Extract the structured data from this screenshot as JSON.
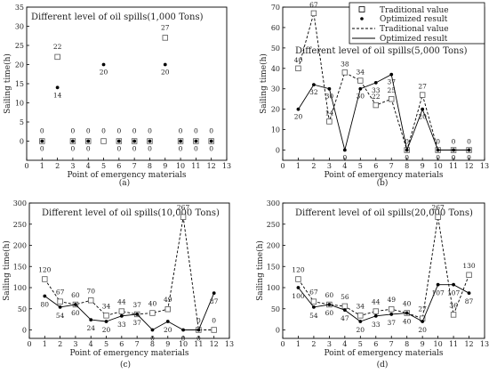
{
  "legend": {
    "traditional_points": "Traditional value",
    "optimized_points": "Optimized result",
    "traditional_line": "Traditional value",
    "optimized_line": "Optimized result"
  },
  "chart_data": [
    {
      "type": "scatter",
      "panel": "(a)",
      "title": "Different level of oil spills(1,000 Tons)",
      "xlabel": "Point of emergency materials",
      "ylabel": "Sailing time(h)",
      "xlim": [
        0,
        13
      ],
      "ylim": [
        -5,
        35
      ],
      "xticks": [
        0,
        1,
        2,
        3,
        4,
        5,
        6,
        7,
        8,
        9,
        10,
        11,
        12,
        13
      ],
      "yticks": [
        0,
        5,
        10,
        15,
        20,
        25,
        30,
        35
      ],
      "x": [
        1,
        2,
        3,
        4,
        5,
        6,
        7,
        8,
        9,
        10,
        11,
        12
      ],
      "series": [
        {
          "name": "Traditional value",
          "marker": "open-square",
          "line": false,
          "values": [
            0,
            22,
            0,
            0,
            0,
            0,
            0,
            0,
            27,
            0,
            0,
            0
          ],
          "labels": [
            "0",
            "22",
            "0",
            "0",
            "0",
            "0",
            "0",
            "0",
            "27",
            "0",
            "0",
            "0"
          ]
        },
        {
          "name": "Optimized result",
          "marker": "filled-circle",
          "line": false,
          "values": [
            0,
            14,
            0,
            0,
            20,
            0,
            0,
            0,
            20,
            0,
            0,
            0
          ],
          "labels": [
            "0",
            "14",
            "0",
            "0",
            "20",
            "0",
            "0",
            "0",
            "20",
            "0",
            "0",
            "0"
          ]
        }
      ]
    },
    {
      "type": "line",
      "panel": "(b)",
      "title": "Different level of oil spills(5,000 Tons)",
      "xlabel": "Point of emergency materials",
      "ylabel": "Sailing time(h)",
      "xlim": [
        0,
        13
      ],
      "ylim": [
        -5,
        70
      ],
      "xticks": [
        0,
        1,
        2,
        3,
        4,
        5,
        6,
        7,
        8,
        9,
        10,
        11,
        12,
        13
      ],
      "yticks": [
        0,
        10,
        20,
        30,
        40,
        50,
        60,
        70
      ],
      "x": [
        1,
        2,
        3,
        4,
        5,
        6,
        7,
        8,
        9,
        10,
        11,
        12
      ],
      "series": [
        {
          "name": "Traditional value",
          "marker": "open-square",
          "line": "dashed",
          "values": [
            40,
            67,
            14,
            38,
            34,
            22,
            25,
            0,
            27,
            0,
            0,
            0
          ],
          "labels": [
            "40",
            "67",
            "14",
            "38",
            "34",
            "22",
            "25",
            "0",
            "27",
            "0",
            "0",
            "0"
          ]
        },
        {
          "name": "Optimized result",
          "marker": "filled-circle",
          "line": "solid",
          "values": [
            20,
            32,
            30,
            0,
            30,
            33,
            37,
            0,
            20,
            0,
            0,
            0
          ],
          "labels": [
            "20",
            "32",
            "30",
            "0",
            "30",
            "33",
            "37",
            "0",
            "20",
            "0",
            "0",
            "0"
          ]
        }
      ]
    },
    {
      "type": "line",
      "panel": "(c)",
      "title": "Different level of oil spills(10,000 Tons)",
      "xlabel": "Point of emergency materials",
      "ylabel": "Sailing time(h)",
      "xlim": [
        0,
        13
      ],
      "ylim": [
        -20,
        300
      ],
      "xticks": [
        0,
        1,
        2,
        3,
        4,
        5,
        6,
        7,
        8,
        9,
        10,
        11,
        12,
        13
      ],
      "yticks": [
        0,
        50,
        100,
        150,
        200,
        250,
        300
      ],
      "x": [
        1,
        2,
        3,
        4,
        5,
        6,
        7,
        8,
        9,
        10,
        11,
        12
      ],
      "series": [
        {
          "name": "Traditional value",
          "marker": "open-square",
          "line": "dashed",
          "values": [
            120,
            67,
            60,
            70,
            34,
            44,
            37,
            40,
            49,
            267,
            0,
            0
          ],
          "labels": [
            "120",
            "67",
            "60",
            "70",
            "34",
            "44",
            "37",
            "40",
            "49",
            "267",
            "0",
            "0"
          ]
        },
        {
          "name": "Optimized result",
          "marker": "filled-circle",
          "line": "solid",
          "values": [
            80,
            54,
            60,
            24,
            20,
            33,
            37,
            0,
            20,
            0,
            0,
            87
          ],
          "labels": [
            "80",
            "54",
            "60",
            "24",
            "20",
            "33",
            "37",
            "0",
            "20",
            "0",
            "0",
            "87"
          ]
        }
      ]
    },
    {
      "type": "line",
      "panel": "(d)",
      "title": "Different level of oil spills(20,000 Tons)",
      "xlabel": "Point of emergency materials",
      "ylabel": "Sailing time(h)",
      "xlim": [
        0,
        13
      ],
      "ylim": [
        -20,
        300
      ],
      "xticks": [
        0,
        1,
        2,
        3,
        4,
        5,
        6,
        7,
        8,
        9,
        10,
        11,
        12,
        13
      ],
      "yticks": [
        0,
        50,
        100,
        150,
        200,
        250,
        300
      ],
      "x": [
        1,
        2,
        3,
        4,
        5,
        6,
        7,
        8,
        9,
        10,
        11,
        12
      ],
      "series": [
        {
          "name": "Traditional value",
          "marker": "open-square",
          "line": "dashed",
          "values": [
            120,
            67,
            60,
            56,
            34,
            44,
            49,
            40,
            27,
            267,
            36,
            130
          ],
          "labels": [
            "120",
            "67",
            "60",
            "56",
            "34",
            "44",
            "49",
            "40",
            "27",
            "267",
            "36",
            "130"
          ]
        },
        {
          "name": "Optimized result",
          "marker": "filled-circle",
          "line": "solid",
          "values": [
            100,
            54,
            60,
            47,
            20,
            33,
            37,
            40,
            20,
            107,
            107,
            87
          ],
          "labels": [
            "100",
            "54",
            "60",
            "47",
            "20",
            "33",
            "37",
            "40",
            "20",
            "107",
            "107",
            "87"
          ]
        }
      ]
    }
  ]
}
